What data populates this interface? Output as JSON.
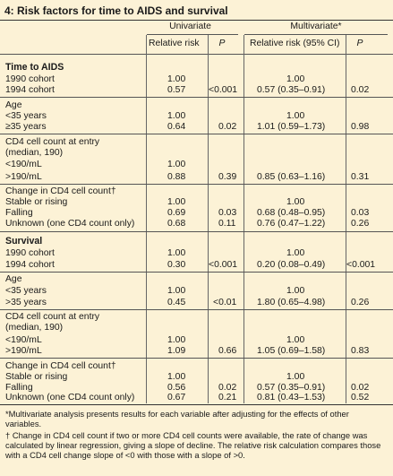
{
  "table": {
    "title": "4:  Risk factors for time to AIDS and survival",
    "group_headers": {
      "univariate": "Univariate",
      "multivariate": "Multivariate*"
    },
    "col_headers": {
      "uni_rr": "Relative risk",
      "uni_p": "P",
      "multi_rr": "Relative risk (95% CI)",
      "multi_p": "P"
    },
    "sections": [
      {
        "name": "Time to AIDS",
        "groups": [
          {
            "heading": null,
            "rows": [
              {
                "label": "1990 cohort",
                "uni_rr": "1.00",
                "uni_p": "",
                "multi_rr": "1.00",
                "multi_p": ""
              },
              {
                "label": "1994 cohort",
                "uni_rr": "0.57",
                "uni_p": "<0.001",
                "multi_rr": "0.57 (0.35–0.91)",
                "multi_p": "0.02"
              }
            ]
          },
          {
            "heading": "Age",
            "rows": [
              {
                "label": "<35 years",
                "uni_rr": "1.00",
                "uni_p": "",
                "multi_rr": "1.00",
                "multi_p": ""
              },
              {
                "label": "≥35 years",
                "uni_rr": "0.64",
                "uni_p": "0.02",
                "multi_rr": "1.01 (0.59–1.73)",
                "multi_p": "0.98"
              }
            ]
          },
          {
            "heading": "CD4 cell count at entry\n(median, 190)",
            "rows": [
              {
                "label": "<190/mL",
                "uni_rr": "1.00",
                "uni_p": "",
                "multi_rr": "",
                "multi_p": ""
              },
              {
                "label": ">190/mL",
                "uni_rr": "0.88",
                "uni_p": "0.39",
                "multi_rr": "0.85 (0.63–1.16)",
                "multi_p": "0.31"
              }
            ]
          },
          {
            "heading": "Change in CD4 cell count†",
            "rows": [
              {
                "label": "Stable or rising",
                "uni_rr": "1.00",
                "uni_p": "",
                "multi_rr": "1.00",
                "multi_p": ""
              },
              {
                "label": "Falling",
                "uni_rr": "0.69",
                "uni_p": "0.03",
                "multi_rr": "0.68 (0.48–0.95)",
                "multi_p": "0.03"
              },
              {
                "label": "Unknown (one CD4 count only)",
                "uni_rr": "0.68",
                "uni_p": "0.11",
                "multi_rr": "0.76 (0.47–1.22)",
                "multi_p": "0.26"
              }
            ]
          }
        ]
      },
      {
        "name": "Survival",
        "groups": [
          {
            "heading": null,
            "rows": [
              {
                "label": "1990 cohort",
                "uni_rr": "1.00",
                "uni_p": "",
                "multi_rr": "1.00",
                "multi_p": ""
              },
              {
                "label": "1994 cohort",
                "uni_rr": "0.30",
                "uni_p": "<0.001",
                "multi_rr": "0.20 (0.08–0.49)",
                "multi_p": "<0.001"
              }
            ]
          },
          {
            "heading": "Age",
            "rows": [
              {
                "label": "<35 years",
                "uni_rr": "1.00",
                "uni_p": "",
                "multi_rr": "1.00",
                "multi_p": ""
              },
              {
                "label": ">35 years",
                "uni_rr": "0.45",
                "uni_p": "<0.01",
                "multi_rr": "1.80 (0.65–4.98)",
                "multi_p": "0.26"
              }
            ]
          },
          {
            "heading": "CD4 cell count at entry\n(median, 190)",
            "rows": [
              {
                "label": "<190/mL",
                "uni_rr": "1.00",
                "uni_p": "",
                "multi_rr": "1.00",
                "multi_p": ""
              },
              {
                "label": ">190/mL",
                "uni_rr": "1.09",
                "uni_p": "0.66",
                "multi_rr": "1.05 (0.69–1.58)",
                "multi_p": "0.83"
              }
            ]
          },
          {
            "heading": "Change in CD4 cell count†",
            "rows": [
              {
                "label": "Stable or rising",
                "uni_rr": "1.00",
                "uni_p": "",
                "multi_rr": "1.00",
                "multi_p": ""
              },
              {
                "label": "Falling",
                "uni_rr": "0.56",
                "uni_p": "0.02",
                "multi_rr": "0.57 (0.35–0.91)",
                "multi_p": "0.02"
              },
              {
                "label": "Unknown (one CD4 count only)",
                "uni_rr": "0.67",
                "uni_p": "0.21",
                "multi_rr": "0.81 (0.43–1.53)",
                "multi_p": "0.52"
              }
            ]
          }
        ]
      }
    ],
    "footnotes": [
      "*Multivariate analysis presents results for each variable after adjusting for the effects of other variables.",
      "† Change in CD4 cell count if two or more CD4 cell counts were available, the rate of change was calculated by linear regression, giving a slope of decline. The relative risk calculation compares those with a CD4 cell change slope of <0 with those with a slope of >0."
    ]
  },
  "colors": {
    "background": "#fcf2d6",
    "rule": "#555555"
  }
}
